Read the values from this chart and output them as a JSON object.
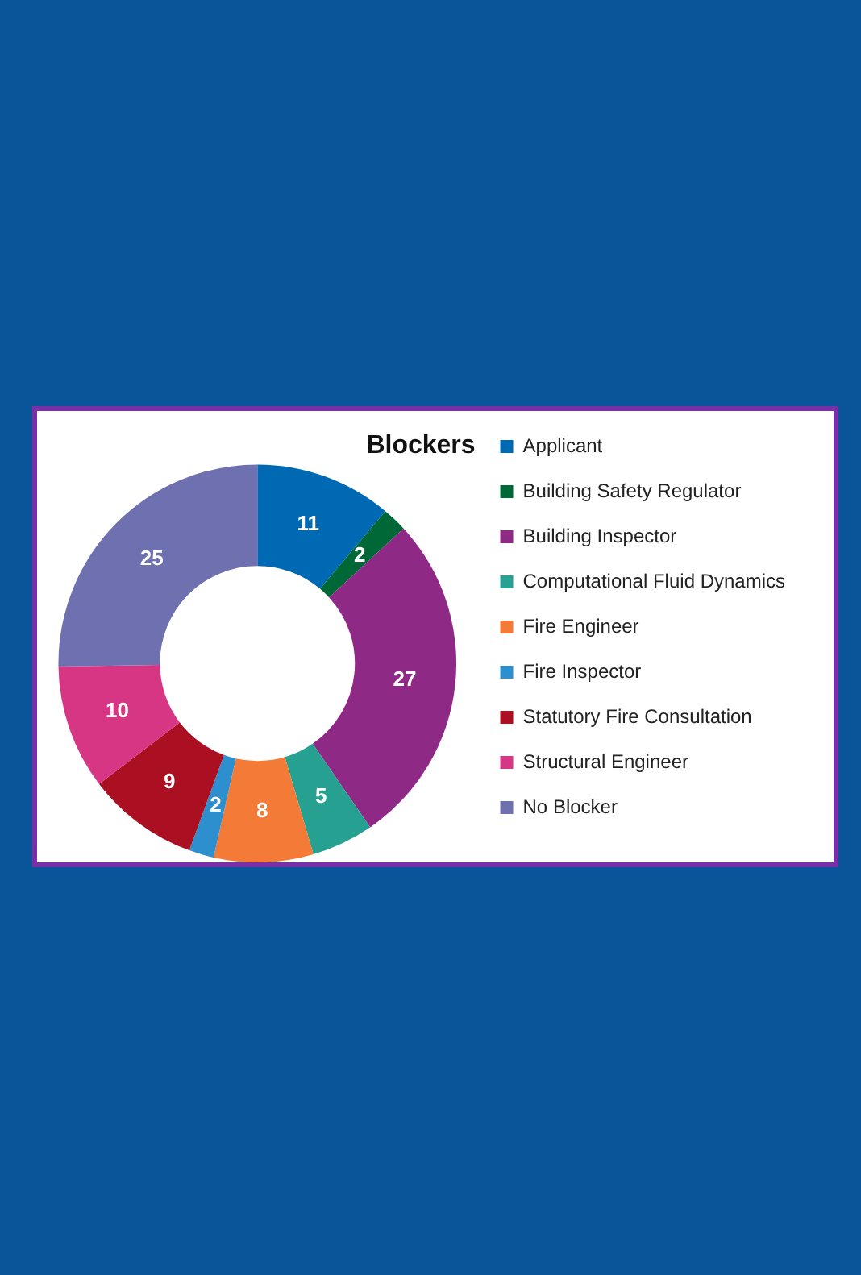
{
  "chart_data": {
    "type": "donut",
    "title": "Blockers",
    "categories": [
      "Applicant",
      "Building Safety Regulator",
      "Building Inspector",
      "Computational Fluid Dynamics",
      "Fire Engineer",
      "Fire Inspector",
      "Statutory Fire Consultation",
      "Structural Engineer",
      "No Blocker"
    ],
    "values": [
      11,
      2,
      27,
      5,
      8,
      2,
      9,
      10,
      25
    ],
    "colors": [
      "#0069b4",
      "#006837",
      "#8e2a86",
      "#26a090",
      "#f47b37",
      "#2e8fcf",
      "#ab0f22",
      "#d63683",
      "#6f70b0"
    ],
    "data_labels": true,
    "legend": "right"
  }
}
